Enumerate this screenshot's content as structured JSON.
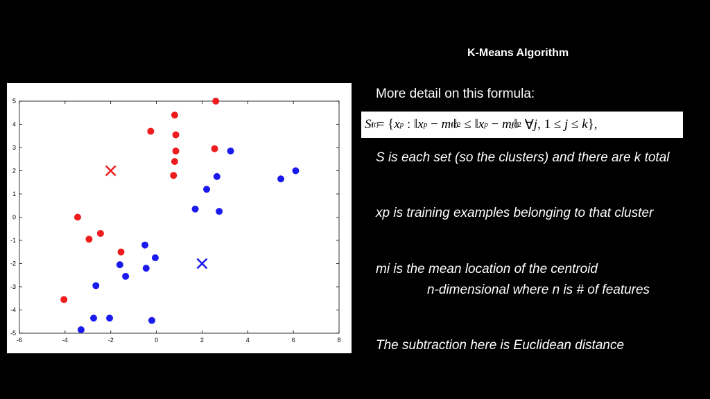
{
  "title": "K-Means Algorithm",
  "text": {
    "intro": "More detail on this formula:",
    "formula": "S_i^(t) = { x_p : || x_p − m_i^(t) ||^2 ≤ || x_p − m_j^(t) ||^2 ∀j, 1 ≤ j ≤ k },",
    "line1": "S is each set (so the clusters) and there are k total",
    "line2": "xp is training examples belonging to that cluster",
    "line3": "mi is the mean location of the centroid",
    "line4": "n-dimensional where n is # of features",
    "line5": "The subtraction here is Euclidean distance"
  },
  "chart_data": {
    "type": "scatter",
    "title": "",
    "xlabel": "",
    "ylabel": "",
    "xlim": [
      -6,
      8
    ],
    "ylim": [
      -5,
      5
    ],
    "x_ticks": [
      "-6",
      "-4",
      "-2",
      "0",
      "2",
      "4",
      "6",
      "8"
    ],
    "y_ticks": [
      "5",
      "4",
      "3",
      "2",
      "1",
      "0",
      "-1",
      "-2",
      "-3",
      "-4",
      "-5"
    ],
    "grid": false,
    "series": [
      {
        "color": "#ee1c1c",
        "marker": "circle",
        "points": [
          [
            2.6,
            5.0
          ],
          [
            0.8,
            4.4
          ],
          [
            -0.25,
            3.7
          ],
          [
            0.85,
            3.55
          ],
          [
            0.85,
            2.85
          ],
          [
            2.55,
            2.95
          ],
          [
            0.8,
            2.4
          ],
          [
            0.75,
            1.8
          ],
          [
            -3.45,
            0.0
          ],
          [
            -2.45,
            -0.7
          ],
          [
            -2.95,
            -0.95
          ],
          [
            -1.55,
            -1.5
          ],
          [
            -4.05,
            -3.55
          ]
        ]
      },
      {
        "color": "#1a1aee",
        "marker": "circle",
        "points": [
          [
            3.25,
            2.85
          ],
          [
            6.1,
            2.0
          ],
          [
            5.45,
            1.65
          ],
          [
            2.65,
            1.75
          ],
          [
            2.2,
            1.2
          ],
          [
            1.7,
            0.35
          ],
          [
            2.75,
            0.25
          ],
          [
            -0.5,
            -1.2
          ],
          [
            -0.05,
            -1.75
          ],
          [
            -1.6,
            -2.05
          ],
          [
            -0.45,
            -2.2
          ],
          [
            -1.35,
            -2.55
          ],
          [
            -2.65,
            -2.95
          ],
          [
            -2.75,
            -4.35
          ],
          [
            -2.05,
            -4.35
          ],
          [
            -0.2,
            -4.45
          ],
          [
            -3.3,
            -4.85
          ]
        ]
      }
    ],
    "centroids": [
      {
        "color": "#ee1c1c",
        "x": -2.0,
        "y": 2.0
      },
      {
        "color": "#1a1aee",
        "x": 2.0,
        "y": -2.0
      }
    ]
  }
}
